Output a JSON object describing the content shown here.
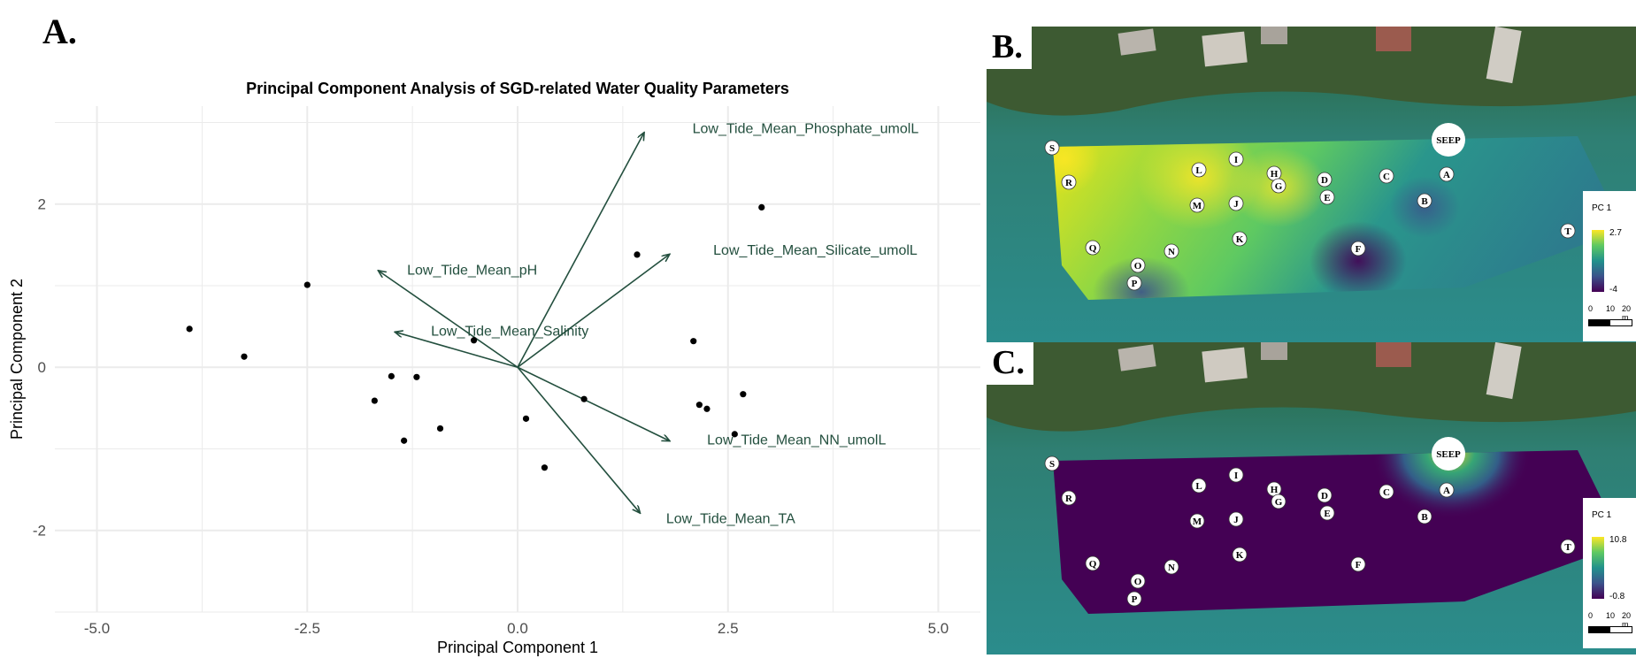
{
  "panels": {
    "a": "A.",
    "b": "B.",
    "c": "C."
  },
  "chart_data": {
    "type": "scatter",
    "title": "Principal Component Analysis of SGD-related Water Quality Parameters",
    "xlabel": "Principal Component 1",
    "ylabel": "Principal Component 2",
    "xlim": [
      -5.5,
      5.5
    ],
    "ylim": [
      -3.0,
      3.2
    ],
    "x_ticks": [
      "-5.0",
      "-2.5",
      "0.0",
      "2.5",
      "5.0"
    ],
    "y_ticks": [
      "2",
      "0",
      "-2"
    ],
    "grid": true,
    "points": [
      {
        "x": -3.9,
        "y": 0.47
      },
      {
        "x": -3.25,
        "y": 0.13
      },
      {
        "x": -2.5,
        "y": 1.01
      },
      {
        "x": -1.7,
        "y": -0.41
      },
      {
        "x": -1.5,
        "y": -0.11
      },
      {
        "x": -1.35,
        "y": -0.9
      },
      {
        "x": -1.2,
        "y": -0.12
      },
      {
        "x": -0.92,
        "y": -0.75
      },
      {
        "x": -0.52,
        "y": 0.33
      },
      {
        "x": 0.1,
        "y": -0.63
      },
      {
        "x": 0.32,
        "y": -1.23
      },
      {
        "x": 0.79,
        "y": -0.39
      },
      {
        "x": 1.42,
        "y": 1.38
      },
      {
        "x": 2.09,
        "y": 0.32
      },
      {
        "x": 2.16,
        "y": -0.46
      },
      {
        "x": 2.25,
        "y": -0.51
      },
      {
        "x": 2.58,
        "y": -0.82
      },
      {
        "x": 2.68,
        "y": -0.33
      },
      {
        "x": 2.9,
        "y": 1.96
      }
    ],
    "loadings": [
      {
        "name": "Low_Tide_Mean_Phosphate_umolL",
        "x": 1.5,
        "y": 2.87
      },
      {
        "name": "Low_Tide_Mean_Silicate_umolL",
        "x": 1.8,
        "y": 1.38
      },
      {
        "name": "Low_Tide_Mean_pH",
        "x": -1.65,
        "y": 1.18
      },
      {
        "name": "Low_Tide_Mean_Salinity",
        "x": -1.45,
        "y": 0.43
      },
      {
        "name": "Low_Tide_Mean_NN_umolL",
        "x": 1.8,
        "y": -0.9
      },
      {
        "name": "Low_Tide_Mean_TA",
        "x": 1.45,
        "y": -1.78
      }
    ]
  },
  "maps": [
    {
      "letter": "B.",
      "legend_title": "PC 1",
      "legend_max": "2.7",
      "legend_min": "-4",
      "scale_labels": [
        "0",
        "10",
        "20 m"
      ]
    },
    {
      "letter": "C.",
      "legend_title": "PC 1",
      "legend_max": "10.8",
      "legend_min": "-0.8",
      "scale_labels": [
        "0",
        "10",
        "20 m"
      ]
    }
  ],
  "stations": [
    "S",
    "R",
    "L",
    "I",
    "H",
    "G",
    "D",
    "E",
    "C",
    "A",
    "B",
    "M",
    "J",
    "K",
    "F",
    "Q",
    "N",
    "O",
    "P",
    "T"
  ],
  "seep_label": "SEEP",
  "colors": {
    "arrow": "#234f3e",
    "point": "#000000",
    "grid": "#ebebeb",
    "viridis_low": "#440154",
    "viridis_mid": "#21918c",
    "viridis_high": "#fde725"
  }
}
